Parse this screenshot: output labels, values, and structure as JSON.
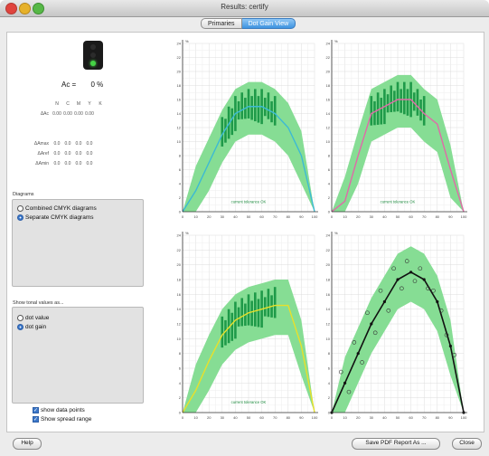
{
  "window": {
    "title": "Results: certify"
  },
  "tabs": [
    {
      "label": "Primaries",
      "selected": false
    },
    {
      "label": "Dot Gain View",
      "selected": true
    }
  ],
  "indicator": {
    "status": "green",
    "ae_label": "Ac =",
    "ae_value": "0 %"
  },
  "table": {
    "headers": [
      "N",
      "C",
      "M",
      "Y",
      "K"
    ],
    "rows": [
      {
        "label": "ΔAc",
        "values": [
          "0.00",
          "0.00",
          "0.00",
          "0.00"
        ]
      },
      {
        "label": "ΔAmax",
        "values": [
          "0.0",
          "0.0",
          "0.0",
          "0.0"
        ]
      },
      {
        "label": "ΔAref",
        "values": [
          "0.0",
          "0.0",
          "0.0",
          "0.0"
        ]
      },
      {
        "label": "ΔAmin",
        "values": [
          "0.0",
          "0.0",
          "0.0",
          "0.0"
        ]
      }
    ]
  },
  "diagrams": {
    "label": "Diagrams",
    "options": [
      {
        "label": "Combined CMYK diagrams",
        "selected": false
      },
      {
        "label": "Separate CMYK diagrams",
        "selected": true
      }
    ]
  },
  "tonal": {
    "label": "Show tonal values as...",
    "options": [
      {
        "label": "dot value",
        "selected": false
      },
      {
        "label": "dot gain",
        "selected": true
      }
    ]
  },
  "checks": [
    {
      "label": "show data points",
      "checked": true
    },
    {
      "label": "Show spread range",
      "checked": true
    }
  ],
  "buttons": {
    "help": "Help",
    "save": "Save PDF Report As ...",
    "close": "Close"
  },
  "colors": {
    "spread": "#86dd94",
    "bars": "#1f9a49",
    "cyan": "#3cbad4",
    "magenta": "#e06aa8",
    "yellow": "#e8e02a",
    "black": "#111111"
  },
  "chart_data": [
    {
      "type": "area",
      "title": "",
      "annotation": "current tolerance OK",
      "y_axis_title": "%",
      "x": [
        0,
        10,
        20,
        30,
        40,
        50,
        60,
        70,
        80,
        90,
        100
      ],
      "xlim": [
        0,
        100
      ],
      "ylim": [
        0,
        24
      ],
      "series": [
        {
          "values": [
            0,
            3,
            7,
            11,
            14,
            15,
            15,
            14,
            12,
            8,
            0
          ]
        }
      ]
    },
    {
      "type": "area",
      "title": "",
      "annotation": "current tolerance OK",
      "y_axis_title": "%",
      "x": [
        0,
        10,
        20,
        30,
        40,
        50,
        60,
        70,
        80,
        90,
        100
      ],
      "xlim": [
        0,
        100
      ],
      "ylim": [
        0,
        24
      ],
      "series": [
        {
          "values": [
            0,
            1.5,
            8,
            14,
            15,
            16,
            16,
            14,
            12.5,
            6,
            0
          ]
        }
      ]
    },
    {
      "type": "area",
      "title": "",
      "annotation": "current tolerance OK",
      "y_axis_title": "%",
      "x": [
        0,
        10,
        20,
        30,
        40,
        50,
        60,
        70,
        80,
        90,
        100
      ],
      "xlim": [
        0,
        100
      ],
      "ylim": [
        0,
        24
      ],
      "series": [
        {
          "values": [
            0,
            3,
            7,
            10.5,
            12.5,
            13.5,
            14,
            14.5,
            14.5,
            9,
            0
          ]
        }
      ]
    },
    {
      "type": "scatter",
      "title": "",
      "y_axis_title": "%",
      "x": [
        0,
        10,
        20,
        30,
        40,
        50,
        60,
        70,
        80,
        90,
        100
      ],
      "xlim": [
        0,
        100
      ],
      "ylim": [
        0,
        24
      ],
      "series": [
        {
          "values": [
            0,
            4,
            8,
            12,
            15,
            18,
            19,
            18,
            15,
            9,
            0
          ]
        }
      ]
    }
  ]
}
